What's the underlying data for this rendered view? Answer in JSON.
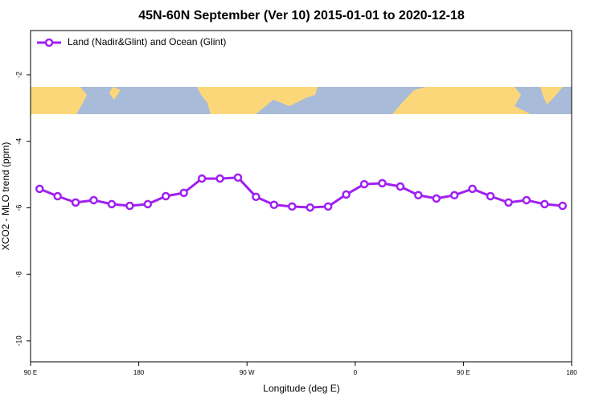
{
  "chart_data": {
    "type": "line",
    "title": "45N-60N September (Ver 10)   2015-01-01 to 2020-12-18",
    "x_label": "Longitude (deg E)",
    "y_label": "XCO2 - MLO trend (ppm)",
    "x": [
      97.5,
      112.5,
      127.5,
      142.5,
      157.5,
      172.5,
      187.5,
      202.5,
      217.5,
      232.5,
      247.5,
      262.5,
      277.5,
      292.5,
      307.5,
      322.5,
      337.5,
      352.5,
      367.5,
      382.5,
      397.5,
      412.5,
      427.5,
      442.5,
      457.5,
      472.5,
      487.5,
      502.5,
      517.5,
      532.5
    ],
    "series": [
      {
        "name": "Land (Nadir&Glint) and Ocean (Glint)",
        "color": "#a020f0",
        "values": [
          -5.43,
          -5.65,
          -5.84,
          -5.77,
          -5.89,
          -5.94,
          -5.89,
          -5.65,
          -5.55,
          -5.12,
          -5.12,
          -5.09,
          -5.67,
          -5.91,
          -5.96,
          -5.99,
          -5.96,
          -5.6,
          -5.29,
          -5.26,
          -5.36,
          -5.62,
          -5.72,
          -5.62,
          -5.43,
          -5.65,
          -5.84,
          -5.77,
          -5.89,
          -5.94
        ]
      }
    ],
    "xlim": [
      90,
      540
    ],
    "ylim": [
      -10.63,
      -0.67
    ],
    "xticks": [
      {
        "value": 90,
        "label": "90 E"
      },
      180,
      {
        "value": 270,
        "label": "90 W"
      },
      {
        "value": 360,
        "label": "0"
      },
      {
        "value": 450,
        "label": "90 E"
      },
      {
        "value": 540,
        "label": "180"
      }
    ],
    "yticks": [
      -2,
      -4,
      -6,
      -8,
      -10
    ],
    "legend": "top-left"
  }
}
